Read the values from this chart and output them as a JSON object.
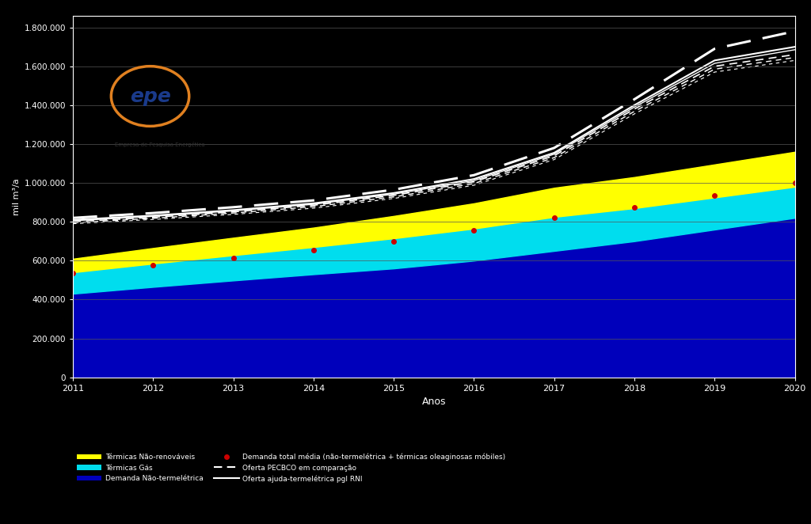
{
  "years": [
    2011,
    2012,
    2013,
    2014,
    2015,
    2016,
    2017,
    2018,
    2019,
    2020
  ],
  "demanda_nao_termoeletrica": [
    430000,
    465000,
    498000,
    530000,
    560000,
    600000,
    650000,
    700000,
    760000,
    820000
  ],
  "termicas_gas": [
    110000,
    120000,
    130000,
    140000,
    155000,
    165000,
    175000,
    170000,
    165000,
    160000
  ],
  "termicas_renovavel": [
    70000,
    80000,
    90000,
    100000,
    115000,
    130000,
    150000,
    160000,
    170000,
    180000
  ],
  "demanda_total_media_dotted": [
    535000,
    575000,
    615000,
    655000,
    700000,
    755000,
    820000,
    875000,
    935000,
    1000000
  ],
  "linha_top_dashed": [
    820000,
    845000,
    875000,
    910000,
    965000,
    1040000,
    1180000,
    1430000,
    1690000,
    1780000
  ],
  "linha_2_solid": [
    810000,
    832000,
    860000,
    895000,
    948000,
    1020000,
    1155000,
    1400000,
    1630000,
    1700000
  ],
  "linha_3_solid": [
    805000,
    828000,
    856000,
    890000,
    942000,
    1012000,
    1148000,
    1390000,
    1615000,
    1685000
  ],
  "linha_4_dashed": [
    800000,
    823000,
    851000,
    885000,
    936000,
    1006000,
    1140000,
    1380000,
    1600000,
    1660000
  ],
  "linha_5_dashed": [
    795000,
    818000,
    845000,
    878000,
    928000,
    997000,
    1130000,
    1368000,
    1585000,
    1645000
  ],
  "linha_6_dashed": [
    790000,
    812000,
    838000,
    870000,
    920000,
    988000,
    1120000,
    1355000,
    1570000,
    1630000
  ],
  "bg_color": "#000000",
  "plot_bg_color": "#000000",
  "ylabel": "mil m³/a",
  "xlabel": "Anos",
  "yticks": [
    0,
    200000,
    400000,
    600000,
    800000,
    1000000,
    1200000,
    1400000,
    1600000,
    1800000
  ],
  "ytick_labels": [
    "0",
    "200.000",
    "400.000",
    "600.000",
    "800.000",
    "1.000.000",
    "1.200.000",
    "1.400.000",
    "1.600.000",
    "1.800.000"
  ],
  "ymax": 1860000,
  "color_demanda_nao_termo": "#0000bb",
  "color_termicas_gas": "#00ddee",
  "color_termicas_renovavel": "#ffff00",
  "color_dotted": "#cc0000",
  "color_lines_white": "#ffffff",
  "legend_termicas_renovavel": "Térmicas Não-renováveis",
  "legend_termicas_gas": "Térmicas Gás",
  "legend_demanda_nao_termo": "Demanda Não-termelétrica",
  "legend_dotted": "Demanda total média (não-termelétrica + térmicas oleaginosas móbiles)",
  "legend_dashed": "Oferta PECBCO em comparação",
  "legend_solid": "Oferta ajuda-termelétrica pgl RNI"
}
